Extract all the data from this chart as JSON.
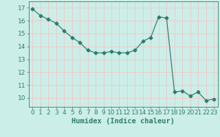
{
  "x": [
    0,
    1,
    2,
    3,
    4,
    5,
    6,
    7,
    8,
    9,
    10,
    11,
    12,
    13,
    14,
    15,
    16,
    17,
    18,
    19,
    20,
    21,
    22,
    23
  ],
  "y": [
    16.9,
    16.4,
    16.1,
    15.8,
    15.2,
    14.7,
    14.3,
    13.7,
    13.5,
    13.5,
    13.6,
    13.5,
    13.5,
    13.7,
    14.4,
    14.7,
    16.3,
    16.2,
    10.45,
    10.55,
    10.15,
    10.45,
    9.8,
    9.9
  ],
  "xlabel": "Humidex (Indice chaleur)",
  "xlim": [
    -0.5,
    23.5
  ],
  "ylim": [
    9.3,
    17.5
  ],
  "yticks": [
    10,
    11,
    12,
    13,
    14,
    15,
    16,
    17
  ],
  "xticks": [
    0,
    1,
    2,
    3,
    4,
    5,
    6,
    7,
    8,
    9,
    10,
    11,
    12,
    13,
    14,
    15,
    16,
    17,
    18,
    19,
    20,
    21,
    22,
    23
  ],
  "line_color": "#2e7d6e",
  "marker": "D",
  "marker_size": 2.5,
  "bg_color": "#cceee8",
  "grid_color": "#f0c8c8",
  "label_color": "#2e7d6e",
  "tick_color": "#2e7d6e",
  "xlabel_fontsize": 7.5,
  "tick_fontsize": 6.5
}
